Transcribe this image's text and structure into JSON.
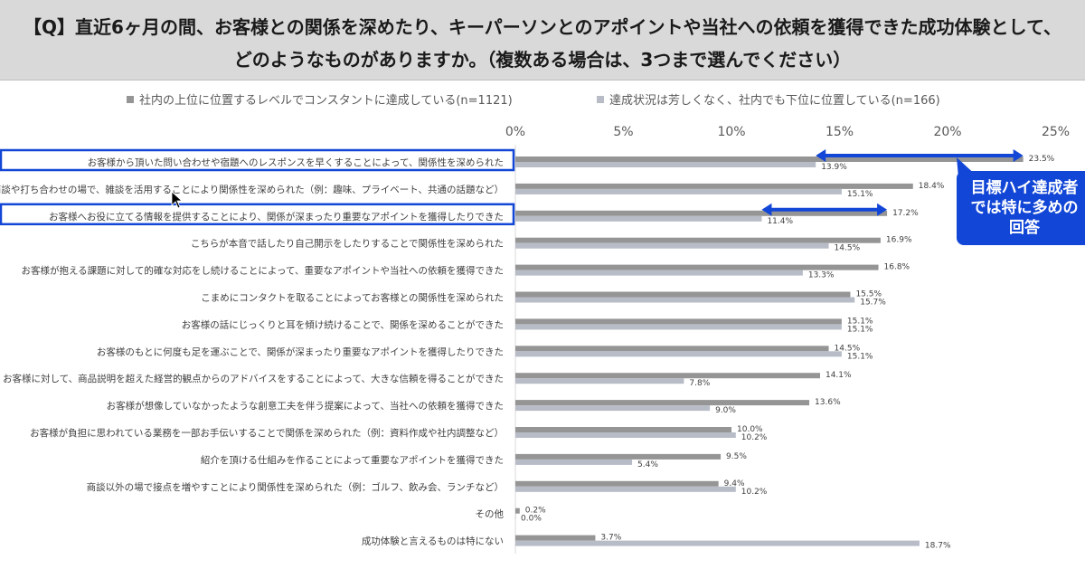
{
  "header": {
    "line1": "【Q】直近6ヶ月の間、お客様との関係を深めたり、キーパーソンとのアポイントや当社への依頼を獲得できた成功体験として、",
    "line2": "どのようなものがありますか。（複数ある場合は、3つまで選んでください）"
  },
  "callout": {
    "line1": "目標ハイ達成者",
    "line2": "では特に多めの",
    "line3": "回答"
  },
  "colors": {
    "series1": "#959595",
    "series2": "#b7bcc6",
    "highlight": "#1246d6",
    "header_bg": "#d9d9d9"
  },
  "chart_data": {
    "type": "bar",
    "orientation": "horizontal",
    "xlim": [
      0,
      25
    ],
    "ticks": [
      "0%",
      "5%",
      "10%",
      "15%",
      "20%",
      "25%"
    ],
    "tick_values": [
      0,
      5,
      10,
      15,
      20,
      25
    ],
    "legend_position": "top",
    "grid": false,
    "categories": [
      "お客様から頂いた問い合わせや宿題へのレスポンスを早くすることによって、関係性を深められた",
      "商談や打ち合わせの場で、雑談を活用することにより関係性を深められた（例：趣味、プライベート、共通の話題など）",
      "お客様へお役に立てる情報を提供することにより、関係が深まったり重要なアポイントを獲得したりできた",
      "こちらが本音で話したり自己開示をしたりすることで関係性を深められた",
      "お客様が抱える課題に対して的確な対応をし続けることによって、重要なアポイントや当社への依頼を獲得できた",
      "こまめにコンタクトを取ることによってお客様との関係性を深められた",
      "お客様の話にじっくりと耳を傾け続けることで、関係を深めることができた",
      "お客様のもとに何度も足を運ぶことで、関係が深まったり重要なアポイントを獲得したりできた",
      "お客様に対して、商品説明を超えた経営的観点からのアドバイスをすることによって、大きな信頼を得ることができた",
      "お客様が想像していなかったような創意工夫を伴う提案によって、当社への依頼を獲得できた",
      "お客様が負担に思われている業務を一部お手伝いすることで関係を深められた（例：資料作成や社内調整など）",
      "紹介を頂ける仕組みを作ることによって重要なアポイントを獲得できた",
      "商談以外の場で接点を増やすことにより関係性を深められた（例：ゴルフ、飲み会、ランチなど）",
      "その他",
      "成功体験と言えるものは特にない"
    ],
    "series": [
      {
        "name": "社内の上位に位置するレベルでコンスタントに達成している(n=1121)",
        "values": [
          23.5,
          18.4,
          17.2,
          16.9,
          16.8,
          15.5,
          15.1,
          14.5,
          14.1,
          13.6,
          10.0,
          9.5,
          9.4,
          0.2,
          3.7
        ],
        "labels": [
          "23.5%",
          "18.4%",
          "17.2%",
          "16.9%",
          "16.8%",
          "15.5%",
          "15.1%",
          "14.5%",
          "14.1%",
          "13.6%",
          "10.0%",
          "9.5%",
          "9.4%",
          "0.2%",
          "3.7%"
        ]
      },
      {
        "name": "達成状況は芳しくなく、社内でも下位に位置している(n=166)",
        "values": [
          13.9,
          15.1,
          11.4,
          14.5,
          13.3,
          15.7,
          15.1,
          15.1,
          7.8,
          9.0,
          10.2,
          5.4,
          10.2,
          0.0,
          18.7
        ],
        "labels": [
          "13.9%",
          "15.1%",
          "11.4%",
          "14.5%",
          "13.3%",
          "15.7%",
          "15.1%",
          "15.1%",
          "7.8%",
          "9.0%",
          "10.2%",
          "5.4%",
          "10.2%",
          "0.0%",
          "18.7%"
        ]
      }
    ],
    "highlighted_categories": [
      0,
      2
    ]
  }
}
